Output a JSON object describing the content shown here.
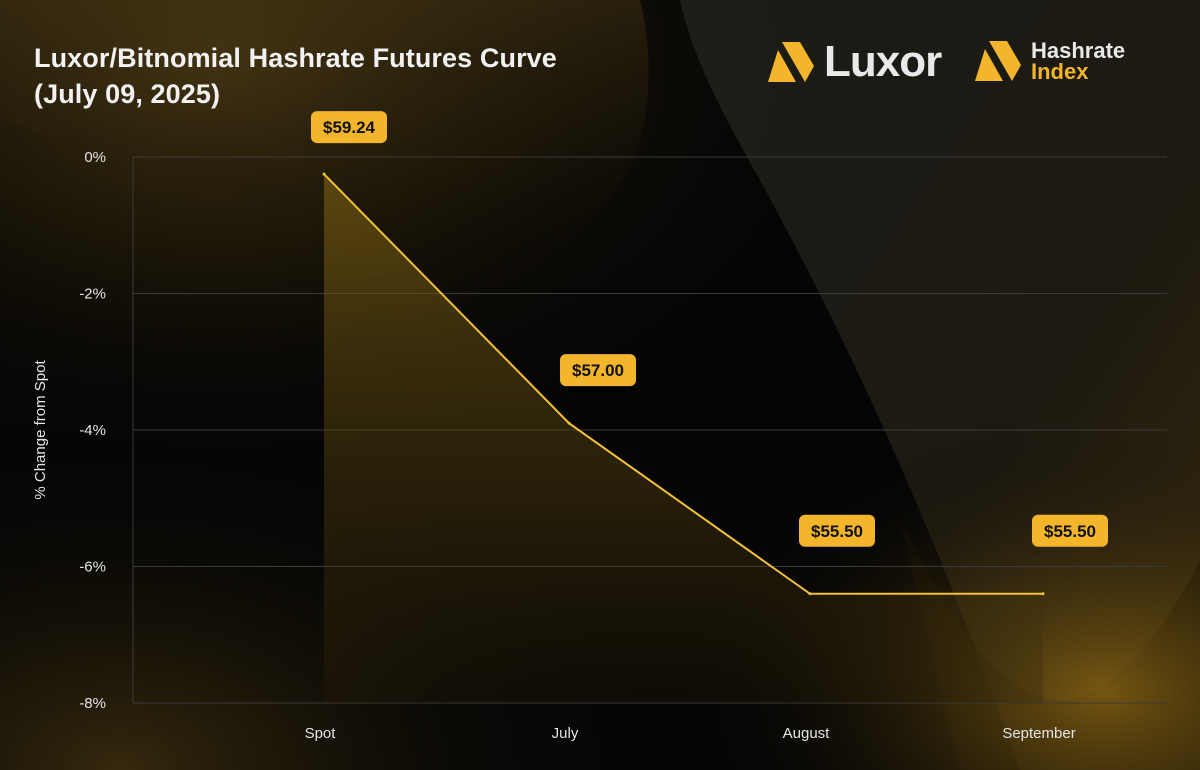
{
  "header": {
    "title_line1": "Luxor/Bitnomial Hashrate Futures Curve",
    "title_line2": "(July 09, 2025)"
  },
  "logos": {
    "luxor": {
      "icon": "luxor-logo-icon",
      "text": "Luxor"
    },
    "hashrate_index": {
      "icon": "hashrate-index-logo-icon",
      "line1": "Hashrate",
      "line2": "Index"
    }
  },
  "colors": {
    "accent": "#F2B52B",
    "line": "#F2C13A",
    "label_bg": "#F2B52B",
    "label_text": "#111111",
    "grid": "#3a3a3a",
    "text": "#E6E6E6"
  },
  "chart_data": {
    "type": "area",
    "title": "Luxor/Bitnomial Hashrate Futures Curve (July 09, 2025)",
    "categories": [
      "Spot",
      "July",
      "August",
      "September"
    ],
    "ylabel": "% Change from Spot",
    "xlabel": "",
    "ylim": [
      -8,
      0
    ],
    "yticks": [
      0,
      -2,
      -4,
      -6,
      -8
    ],
    "ytick_labels": [
      "0%",
      "-2%",
      "-4%",
      "-6%",
      "-8%"
    ],
    "grid": true,
    "series": [
      {
        "values": [
          -0.25,
          -3.9,
          -6.4,
          -6.4
        ],
        "point_labels": [
          "$59.24",
          "$57.00",
          "$55.50",
          "$55.50"
        ]
      }
    ]
  }
}
